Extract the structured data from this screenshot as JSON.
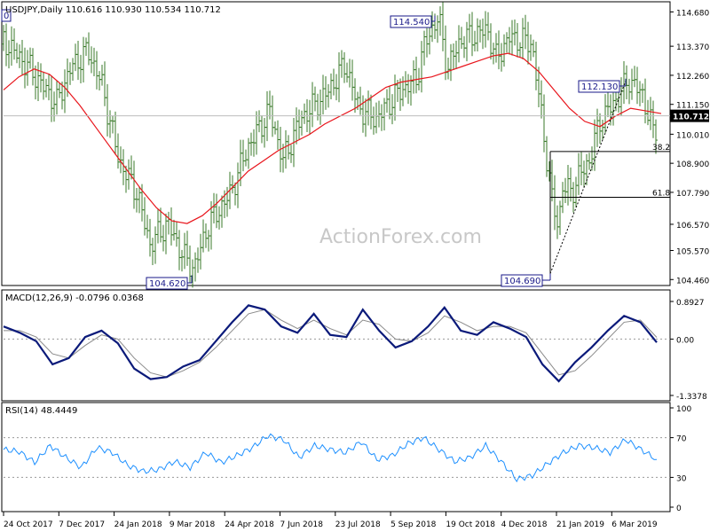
{
  "chart_data": [
    {
      "type": "ohlc",
      "panel": "price",
      "header": "USDJPY,Daily  110.616 110.930 110.534 110.712",
      "watermark": "ActionForex.com",
      "y_ticks": [
        "114.680",
        "113.370",
        "112.260",
        "111.150",
        "110.010",
        "108.900",
        "107.790",
        "106.570",
        "105.570",
        "104.460"
      ],
      "y_range": [
        104.3,
        115.0
      ],
      "last_price": "110.712",
      "colors": {
        "bars": "#3a7a2a",
        "moving_average": "#e8141b",
        "fib": "#000000",
        "axis": "#000000",
        "last_badge_bg": "#000000",
        "last_badge_text": "#ffffff"
      },
      "moving_average": [
        111.7,
        112.2,
        112.5,
        112.3,
        111.8,
        111.1,
        110.3,
        109.5,
        108.7,
        107.9,
        107.2,
        106.7,
        106.6,
        106.9,
        107.4,
        108.0,
        108.6,
        109.0,
        109.4,
        109.7,
        110.0,
        110.4,
        110.7,
        111.0,
        111.4,
        111.8,
        112.0,
        112.1,
        112.2,
        112.4,
        112.6,
        112.8,
        113.0,
        113.1,
        112.9,
        112.4,
        111.7,
        111.0,
        110.5,
        110.3,
        110.7,
        111.0,
        110.9,
        110.8
      ],
      "annotations": [
        {
          "label": "114.540",
          "kind": "swing-high"
        },
        {
          "label": "104.620",
          "kind": "swing-low"
        },
        {
          "label": "112.130",
          "kind": "swing-high"
        },
        {
          "label": "104.690",
          "kind": "swing-low"
        },
        {
          "label": "38.2",
          "kind": "fibonacci",
          "price": 109.35
        },
        {
          "label": "61.8",
          "kind": "fibonacci",
          "price": 107.6
        },
        {
          "label": "0",
          "kind": "cut-off-left-edge"
        }
      ]
    },
    {
      "type": "line",
      "panel": "macd",
      "header": "MACD(12,26,9) -0.0796 0.0368",
      "y_ticks": [
        "0.8927",
        "0.00",
        "-1.3378"
      ],
      "y_range": [
        -1.3378,
        0.8927
      ],
      "series": [
        {
          "name": "MACD",
          "color": "#0b1a7a",
          "values": [
            0.3,
            0.15,
            -0.05,
            -0.6,
            -0.45,
            0.05,
            0.2,
            -0.1,
            -0.7,
            -0.95,
            -0.9,
            -0.65,
            -0.5,
            -0.05,
            0.4,
            0.8,
            0.7,
            0.3,
            0.15,
            0.6,
            0.1,
            0.05,
            0.7,
            0.2,
            -0.2,
            -0.05,
            0.3,
            0.75,
            0.2,
            0.1,
            0.4,
            0.25,
            0.05,
            -0.6,
            -1.0,
            -0.55,
            -0.2,
            0.2,
            0.55,
            0.4,
            -0.08
          ]
        },
        {
          "name": "Signal",
          "color": "#8a8a8a",
          "values": [
            0.2,
            0.2,
            0.05,
            -0.35,
            -0.45,
            -0.15,
            0.1,
            0.0,
            -0.45,
            -0.8,
            -0.9,
            -0.75,
            -0.55,
            -0.2,
            0.2,
            0.6,
            0.7,
            0.45,
            0.25,
            0.45,
            0.25,
            0.1,
            0.45,
            0.35,
            0.0,
            -0.05,
            0.15,
            0.55,
            0.4,
            0.2,
            0.3,
            0.3,
            0.15,
            -0.35,
            -0.85,
            -0.75,
            -0.4,
            0.0,
            0.4,
            0.45,
            0.04
          ]
        }
      ]
    },
    {
      "type": "line",
      "panel": "rsi",
      "header": "RSI(14) 48.4449",
      "y_ticks": [
        "100",
        "70",
        "30",
        "0"
      ],
      "y_range": [
        0,
        100
      ],
      "levels": [
        70,
        30
      ],
      "series": [
        {
          "name": "RSI",
          "color": "#1e90ff",
          "values": [
            58,
            56,
            45,
            62,
            50,
            40,
            60,
            55,
            42,
            36,
            38,
            46,
            40,
            55,
            45,
            52,
            60,
            72,
            68,
            50,
            62,
            58,
            55,
            66,
            48,
            52,
            64,
            70,
            58,
            46,
            50,
            62,
            46,
            28,
            32,
            44,
            55,
            62,
            60,
            55,
            68,
            58,
            48
          ]
        }
      ]
    }
  ],
  "x_axis": {
    "labels": [
      "24 Oct 2017",
      "7 Dec 2017",
      "24 Jan 2018",
      "9 Mar 2018",
      "24 Apr 2018",
      "7 Jun 2018",
      "23 Jul 2018",
      "5 Sep 2018",
      "19 Oct 2018",
      "4 Dec 2018",
      "21 Jan 2019",
      "6 Mar 2019"
    ]
  }
}
